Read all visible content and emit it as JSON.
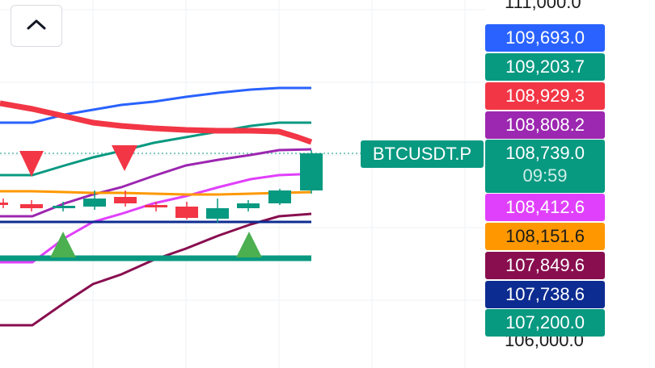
{
  "symbol": "BTCUSDT.P",
  "axis_ticks": {
    "top": "111,000.0",
    "bottom": "106,000.0"
  },
  "current": {
    "price": "108,739.0",
    "countdown": "09:59",
    "color": "#089981"
  },
  "price_labels": [
    {
      "value": "109,693.0",
      "color": "#2962ff"
    },
    {
      "value": "109,203.7",
      "color": "#089981"
    },
    {
      "value": "108,929.3",
      "color": "#f23645"
    },
    {
      "value": "108,808.2",
      "color": "#9c27b0"
    },
    {
      "value": "108,412.6",
      "color": "#e040fb"
    },
    {
      "value": "108,151.6",
      "color": "#ff9800"
    },
    {
      "value": "107,849.6",
      "color": "#880e4f"
    },
    {
      "value": "107,738.6",
      "color": "#0d2c91"
    },
    {
      "value": "107,200.0",
      "color": "#089981"
    }
  ],
  "buttons": {
    "collapse_icon": "chevron-up-icon"
  }
}
